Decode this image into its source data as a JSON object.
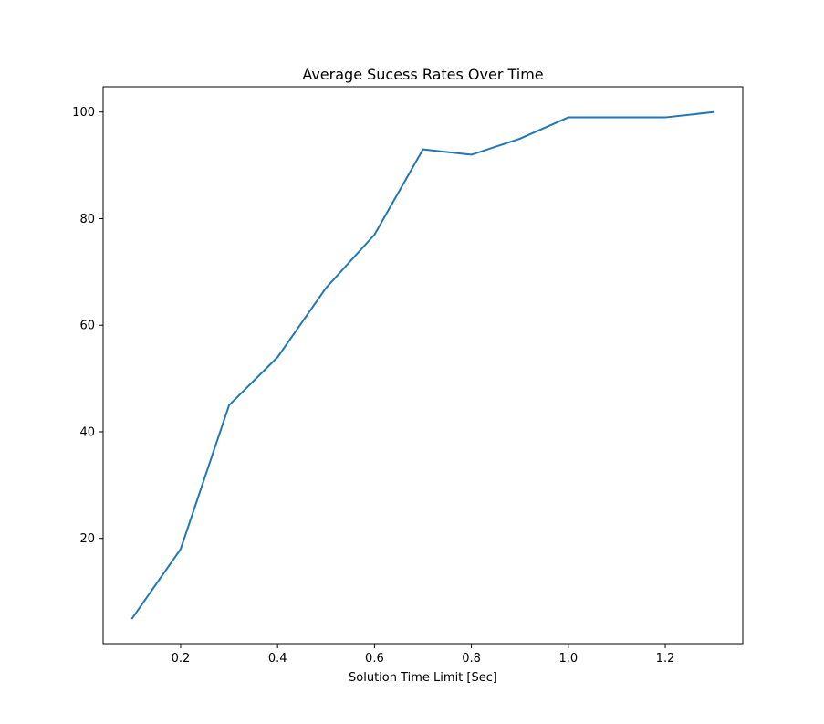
{
  "chart_data": {
    "type": "line",
    "title": "Average Sucess Rates Over Time",
    "xlabel": "Solution Time Limit [Sec]",
    "ylabel": "",
    "x": [
      0.1,
      0.2,
      0.3,
      0.4,
      0.5,
      0.6,
      0.7,
      0.8,
      0.9,
      1.0,
      1.1,
      1.2,
      1.3
    ],
    "series": [
      {
        "values": [
          5,
          18,
          45,
          54,
          67,
          77,
          93,
          92,
          95,
          99,
          99,
          99,
          100
        ],
        "color": "#1f77b4"
      }
    ],
    "xlim": [
      0.04,
      1.36
    ],
    "ylim": [
      0.25,
      104.75
    ],
    "xticks": [
      0.2,
      0.4,
      0.6,
      0.8,
      1.0,
      1.2
    ],
    "xtick_labels": [
      "0.2",
      "0.4",
      "0.6",
      "0.8",
      "1.0",
      "1.2"
    ],
    "yticks": [
      20,
      40,
      60,
      80,
      100
    ],
    "ytick_labels": [
      "20",
      "40",
      "60",
      "80",
      "100"
    ],
    "grid": false,
    "legend": "none"
  }
}
